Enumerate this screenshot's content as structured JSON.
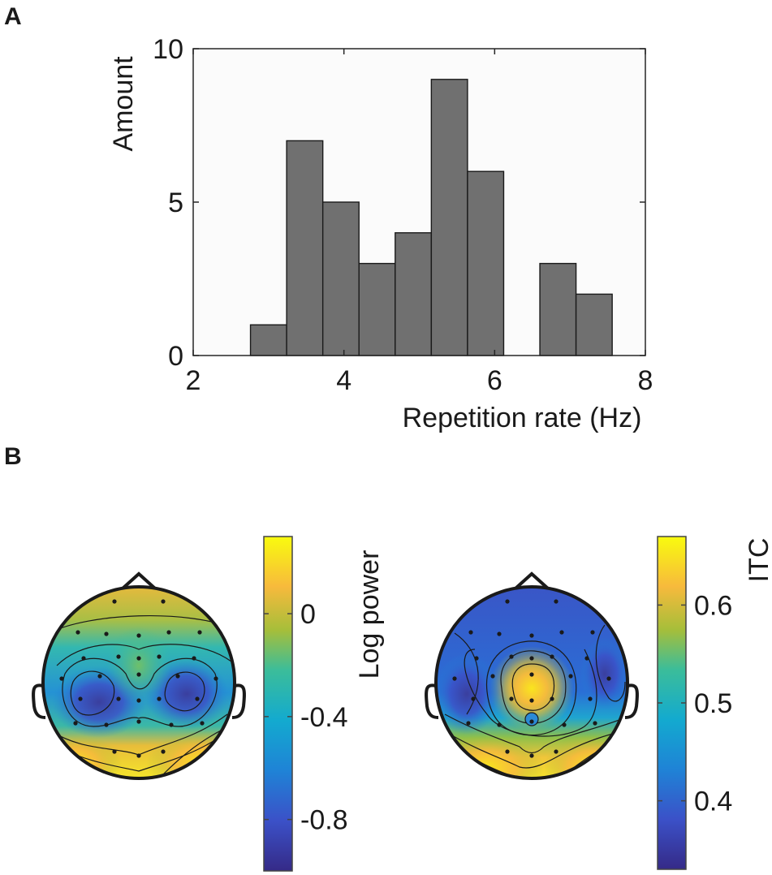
{
  "panels": {
    "a_label": "A",
    "b_label": "B"
  },
  "chart_data": [
    {
      "type": "bar",
      "panel": "A",
      "title": "",
      "xlabel": "Repetition rate (Hz)",
      "ylabel": "Amount",
      "xlim": [
        2,
        8
      ],
      "ylim": [
        0,
        10
      ],
      "xticks": [
        2,
        4,
        6,
        8
      ],
      "yticks": [
        0,
        5,
        10
      ],
      "bin_width": 0.48,
      "bins": [
        {
          "start": 2.76,
          "value": 1
        },
        {
          "start": 3.24,
          "value": 7
        },
        {
          "start": 3.72,
          "value": 5
        },
        {
          "start": 4.2,
          "value": 3
        },
        {
          "start": 4.68,
          "value": 4
        },
        {
          "start": 5.16,
          "value": 9
        },
        {
          "start": 5.64,
          "value": 6
        },
        {
          "start": 6.12,
          "value": 0
        },
        {
          "start": 6.6,
          "value": 3
        },
        {
          "start": 7.08,
          "value": 2
        }
      ],
      "bar_color": "#707070",
      "background": "#fbfbfb"
    },
    {
      "type": "heatmap",
      "panel": "B-left",
      "subtype": "scalp topography",
      "colorbar_label": "Log power",
      "colorbar_ticks": [
        "0",
        "-0.4",
        "-0.8"
      ],
      "colorbar_tick_values": [
        0,
        -0.4,
        -0.8
      ],
      "colorbar_range": [
        -1.0,
        0.3
      ]
    },
    {
      "type": "heatmap",
      "panel": "B-right",
      "subtype": "scalp topography",
      "colorbar_label": "ITC",
      "colorbar_ticks": [
        "0.6",
        "0.5",
        "0.4"
      ],
      "colorbar_tick_values": [
        0.6,
        0.5,
        0.4
      ],
      "colorbar_range": [
        0.33,
        0.67
      ]
    }
  ],
  "colors": {
    "parula_dark": "#352a87",
    "parula_blue": "#1f83d6",
    "parula_teal": "#21b8b2",
    "parula_green": "#a6be3a",
    "parula_orange": "#f7ba3c",
    "parula_yellow": "#f9fb0e"
  }
}
